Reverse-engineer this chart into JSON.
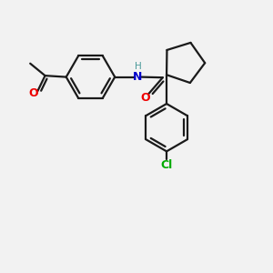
{
  "bg_color": "#f2f2f2",
  "bond_color": "#1a1a1a",
  "bond_width": 1.6,
  "O_color": "#ee0000",
  "N_color": "#0000cc",
  "Cl_color": "#00aa00",
  "H_color": "#4a9a9a",
  "xlim": [
    0,
    10
  ],
  "ylim": [
    0,
    10
  ]
}
